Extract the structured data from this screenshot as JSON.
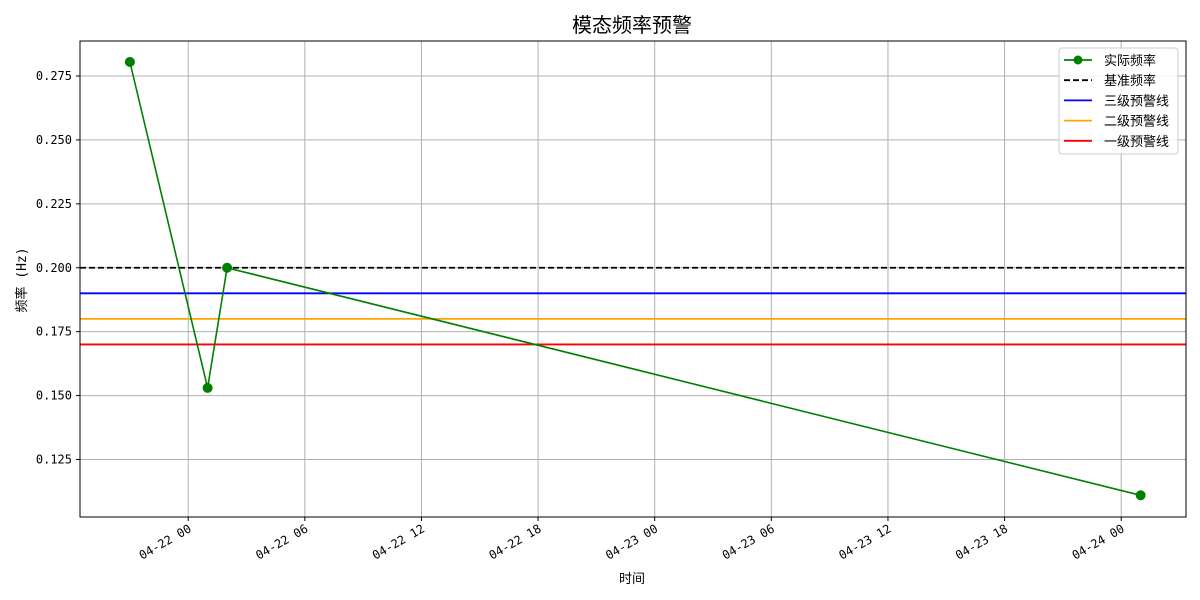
{
  "chart_data": {
    "type": "line",
    "title": "模态频率预警",
    "xlabel": "时间",
    "ylabel": "频率 (Hz)",
    "grid": true,
    "legend_position": "top-right",
    "x_axis": {
      "type": "datetime",
      "range": [
        "2024-04-21T18:26",
        "2024-04-24T03:20"
      ],
      "ticks": [
        {
          "value": "2024-04-22T00:00",
          "label": "04-22 00"
        },
        {
          "value": "2024-04-22T06:00",
          "label": "04-22 06"
        },
        {
          "value": "2024-04-22T12:00",
          "label": "04-22 12"
        },
        {
          "value": "2024-04-22T18:00",
          "label": "04-22 18"
        },
        {
          "value": "2024-04-23T00:00",
          "label": "04-23 00"
        },
        {
          "value": "2024-04-23T06:00",
          "label": "04-23 06"
        },
        {
          "value": "2024-04-23T12:00",
          "label": "04-23 12"
        },
        {
          "value": "2024-04-23T18:00",
          "label": "04-23 18"
        },
        {
          "value": "2024-04-24T00:00",
          "label": "04-24 00"
        }
      ]
    },
    "y_axis": {
      "range": [
        0.1025,
        0.2887
      ],
      "ticks": [
        {
          "value": 0.125,
          "label": "0.125"
        },
        {
          "value": 0.15,
          "label": "0.150"
        },
        {
          "value": 0.175,
          "label": "0.175"
        },
        {
          "value": 0.2,
          "label": "0.200"
        },
        {
          "value": 0.225,
          "label": "0.225"
        },
        {
          "value": 0.25,
          "label": "0.250"
        },
        {
          "value": 0.275,
          "label": "0.275"
        }
      ]
    },
    "series": [
      {
        "name": "实际频率",
        "kind": "line-marker",
        "color": "#008000",
        "points": [
          {
            "x": "2024-04-21T21:00",
            "y": 0.2805
          },
          {
            "x": "2024-04-22T01:00",
            "y": 0.153
          },
          {
            "x": "2024-04-22T02:00",
            "y": 0.2
          },
          {
            "x": "2024-04-24T01:00",
            "y": 0.111
          }
        ]
      }
    ],
    "reference_lines": [
      {
        "name": "基准频率",
        "value": 0.2,
        "color": "#000000",
        "dashed": true
      },
      {
        "name": "三级预警线",
        "value": 0.19,
        "color": "#0000ff",
        "dashed": false
      },
      {
        "name": "二级预警线",
        "value": 0.18,
        "color": "#ffa500",
        "dashed": false
      },
      {
        "name": "一级预警线",
        "value": 0.17,
        "color": "#ff0000",
        "dashed": false
      }
    ]
  }
}
